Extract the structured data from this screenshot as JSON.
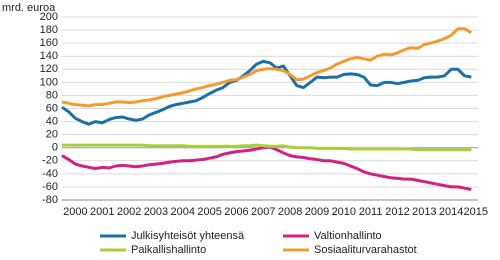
{
  "chart_data": {
    "type": "line",
    "y_label": "mrd. euroa",
    "x": [
      2000,
      2000.25,
      2000.5,
      2000.75,
      2001,
      2001.25,
      2001.5,
      2001.75,
      2002,
      2002.25,
      2002.5,
      2002.75,
      2003,
      2003.25,
      2003.5,
      2003.75,
      2004,
      2004.25,
      2004.5,
      2004.75,
      2005,
      2005.25,
      2005.5,
      2005.75,
      2006,
      2006.25,
      2006.5,
      2006.75,
      2007,
      2007.25,
      2007.5,
      2007.75,
      2008,
      2008.25,
      2008.5,
      2008.75,
      2009,
      2009.25,
      2009.5,
      2009.75,
      2010,
      2010.25,
      2010.5,
      2010.75,
      2011,
      2011.25,
      2011.5,
      2011.75,
      2012,
      2012.25,
      2012.5,
      2012.75,
      2013,
      2013.25,
      2013.5,
      2013.75,
      2014,
      2014.25,
      2014.5,
      2014.75,
      2015,
      2015.25
    ],
    "series": [
      {
        "name": "Julkisyhteisöt yhteensä",
        "color": "#1a6fa8",
        "values": [
          62,
          55,
          45,
          40,
          36,
          40,
          38,
          43,
          46,
          47,
          44,
          42,
          44,
          50,
          54,
          58,
          63,
          66,
          68,
          70,
          72,
          77,
          83,
          88,
          92,
          100,
          103,
          110,
          118,
          128,
          132,
          130,
          122,
          125,
          110,
          95,
          92,
          100,
          108,
          107,
          108,
          108,
          112,
          113,
          112,
          108,
          96,
          95,
          100,
          100,
          98,
          100,
          102,
          103,
          107,
          108,
          108,
          110,
          120,
          120,
          110,
          108
        ]
      },
      {
        "name": "Valtionhallinto",
        "color": "#d4207f",
        "values": [
          -12,
          -18,
          -25,
          -28,
          -30,
          -32,
          -30,
          -31,
          -28,
          -27,
          -28,
          -29,
          -28,
          -26,
          -25,
          -24,
          -22,
          -21,
          -20,
          -20,
          -19,
          -18,
          -16,
          -14,
          -10,
          -8,
          -6,
          -5,
          -4,
          -2,
          0,
          1,
          -3,
          -8,
          -12,
          -14,
          -15,
          -17,
          -18,
          -20,
          -20,
          -22,
          -24,
          -28,
          -32,
          -37,
          -40,
          -42,
          -44,
          -46,
          -47,
          -48,
          -48,
          -50,
          -52,
          -54,
          -56,
          -58,
          -60,
          -60,
          -62,
          -64
        ]
      },
      {
        "name": "Paikallishallinto",
        "color": "#a8cf3a",
        "values": [
          4,
          4,
          4,
          4,
          4,
          4,
          4,
          4,
          4,
          4,
          4,
          4,
          4,
          3,
          3,
          3,
          3,
          3,
          3,
          2,
          2,
          2,
          2,
          2,
          2,
          2,
          2,
          3,
          3,
          4,
          3,
          2,
          2,
          3,
          1,
          0,
          0,
          0,
          -1,
          -1,
          -1,
          -1,
          -1,
          -2,
          -2,
          -2,
          -2,
          -2,
          -2,
          -2,
          -2,
          -2,
          -2,
          -3,
          -3,
          -3,
          -3,
          -3,
          -3,
          -3,
          -3,
          -3
        ]
      },
      {
        "name": "Sosiaaliturvarahastot",
        "color": "#f39a2e",
        "values": [
          70,
          68,
          66,
          65,
          64,
          66,
          66,
          68,
          70,
          70,
          69,
          70,
          72,
          73,
          75,
          78,
          80,
          82,
          84,
          87,
          90,
          92,
          95,
          97,
          100,
          103,
          104,
          108,
          112,
          118,
          120,
          121,
          120,
          118,
          112,
          104,
          105,
          110,
          115,
          118,
          122,
          128,
          132,
          136,
          138,
          136,
          134,
          140,
          143,
          142,
          145,
          150,
          153,
          152,
          158,
          160,
          163,
          167,
          172,
          182,
          182,
          176
        ]
      }
    ],
    "xlim": [
      2000,
      2015.5
    ],
    "xticks": [
      {
        "value": 2000.5,
        "label": "2000"
      },
      {
        "value": 2001.5,
        "label": "2001"
      },
      {
        "value": 2002.5,
        "label": "2002"
      },
      {
        "value": 2003.5,
        "label": "2003"
      },
      {
        "value": 2004.5,
        "label": "2004"
      },
      {
        "value": 2005.5,
        "label": "2005"
      },
      {
        "value": 2006.5,
        "label": "2006"
      },
      {
        "value": 2007.5,
        "label": "2007"
      },
      {
        "value": 2008.5,
        "label": "2008"
      },
      {
        "value": 2009.5,
        "label": "2009"
      },
      {
        "value": 2010.5,
        "label": "2010"
      },
      {
        "value": 2011.5,
        "label": "2011"
      },
      {
        "value": 2012.5,
        "label": "2012"
      },
      {
        "value": 2013.5,
        "label": "2013"
      },
      {
        "value": 2014.5,
        "label": "2014"
      },
      {
        "value": 2015.5,
        "label": "2015"
      }
    ],
    "ylim": [
      -80,
      200
    ],
    "yticks": [
      -80,
      -60,
      -40,
      -20,
      0,
      20,
      40,
      60,
      80,
      100,
      120,
      140,
      160,
      180,
      200
    ],
    "grid": true
  }
}
